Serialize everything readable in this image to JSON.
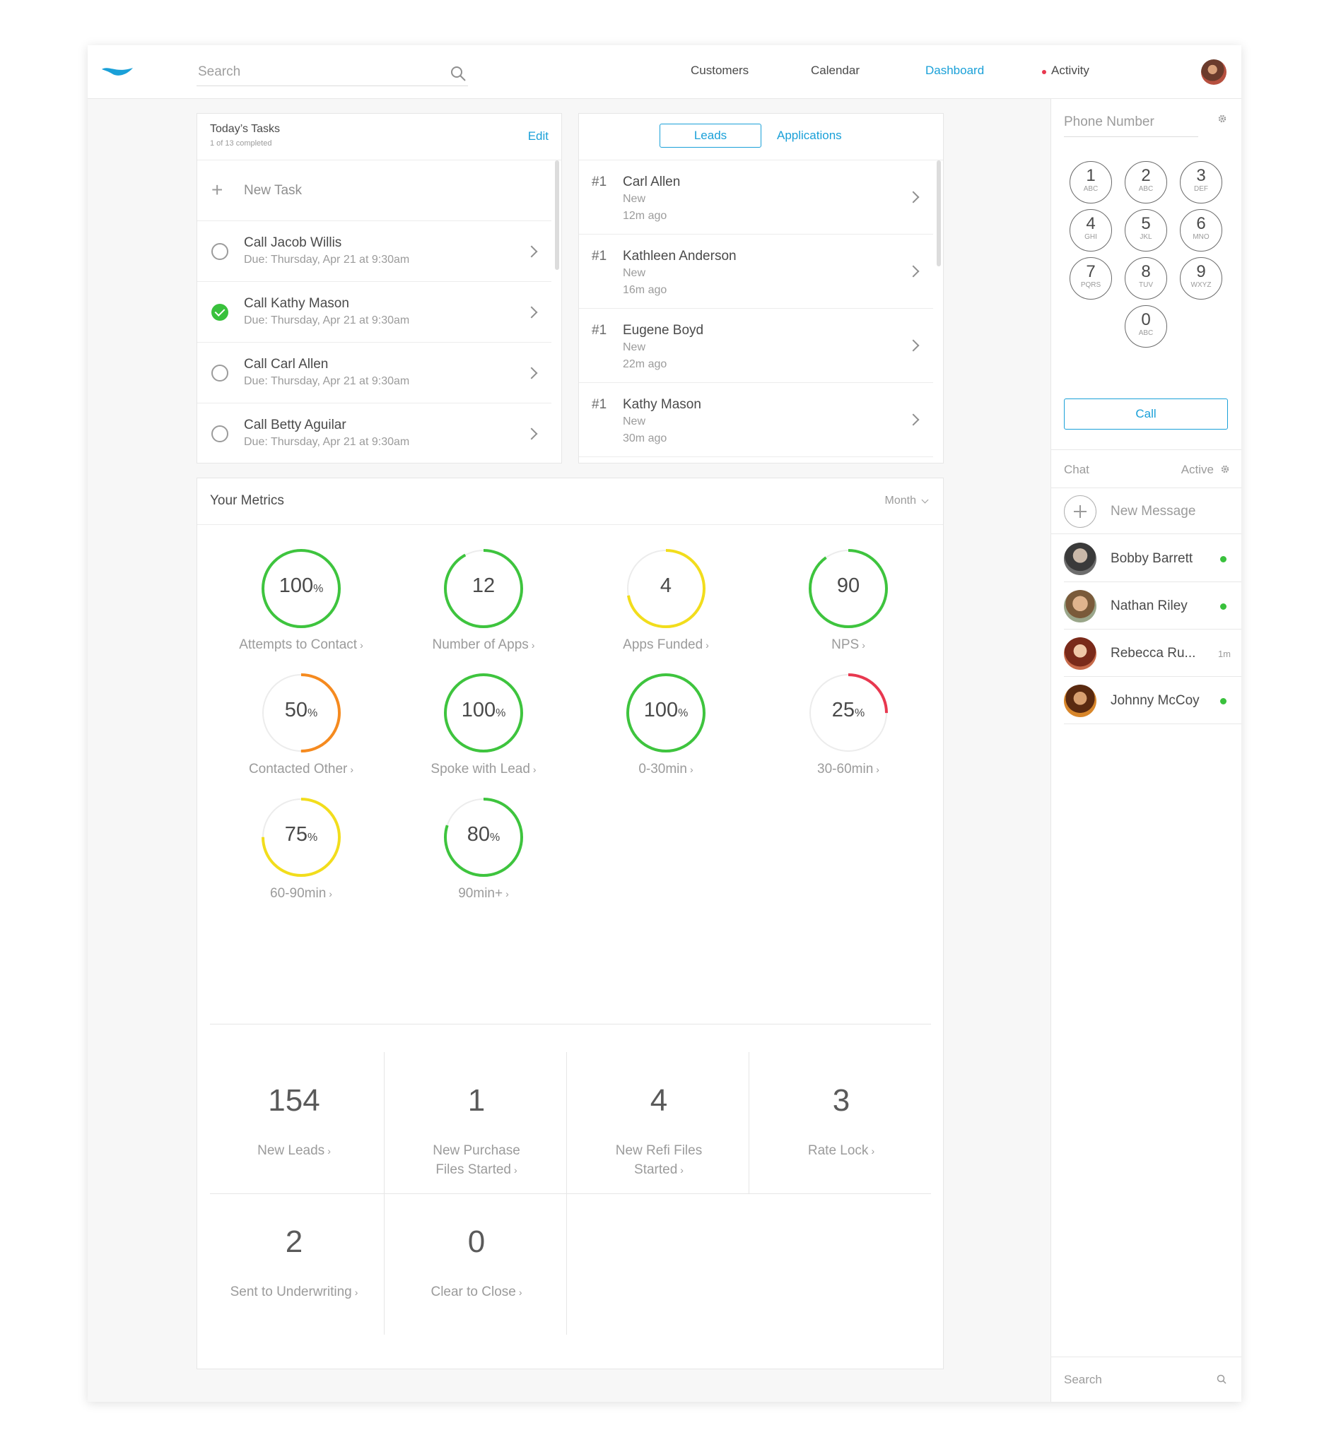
{
  "header": {
    "search_placeholder": "Search",
    "nav": [
      "Customers",
      "Calendar",
      "Dashboard",
      "Activity"
    ],
    "active_nav": "Dashboard",
    "accent_color": "#1aa0d8"
  },
  "tasks": {
    "title": "Today’s Tasks",
    "subtitle": "1 of 13 completed",
    "edit_label": "Edit",
    "new_task_label": "New Task",
    "items": [
      {
        "name": "Call Jacob Willis",
        "due": "Due: Thursday, Apr 21 at 9:30am",
        "done": false
      },
      {
        "name": "Call Kathy Mason",
        "due": "Due: Thursday, Apr 21 at 9:30am",
        "done": true
      },
      {
        "name": "Call Carl Allen",
        "due": "Due: Thursday, Apr 21 at 9:30am",
        "done": false
      },
      {
        "name": "Call Betty Aguilar",
        "due": "Due: Thursday, Apr 21 at 9:30am",
        "done": false
      }
    ]
  },
  "leads": {
    "tabs": [
      "Leads",
      "Applications"
    ],
    "active_tab": "Leads",
    "items": [
      {
        "rank": "#1",
        "name": "Carl Allen",
        "status": "New",
        "time": "12m ago"
      },
      {
        "rank": "#1",
        "name": "Kathleen Anderson",
        "status": "New",
        "time": "16m ago"
      },
      {
        "rank": "#1",
        "name": "Eugene Boyd",
        "status": "New",
        "time": "22m ago"
      },
      {
        "rank": "#1",
        "name": "Kathy Mason",
        "status": "New",
        "time": "30m ago"
      }
    ]
  },
  "metrics": {
    "title": "Your Metrics",
    "range": "Month",
    "gauges": [
      {
        "value": "100",
        "unit": "%",
        "label": "Attempts to Contact",
        "fill": 1.0,
        "color": "#3ec43e"
      },
      {
        "value": "12",
        "unit": "",
        "label": "Number of Apps",
        "fill": 0.92,
        "color": "#3ec43e"
      },
      {
        "value": "4",
        "unit": "",
        "label": "Apps Funded",
        "fill": 0.72,
        "color": "#f2dd1c"
      },
      {
        "value": "90",
        "unit": "",
        "label": "NPS",
        "fill": 0.9,
        "color": "#3ec43e"
      },
      {
        "value": "50",
        "unit": "%",
        "label": "Contacted Other",
        "fill": 0.5,
        "color": "#f58a1f"
      },
      {
        "value": "100",
        "unit": "%",
        "label": "Spoke with Lead",
        "fill": 1.0,
        "color": "#3ec43e"
      },
      {
        "value": "100",
        "unit": "%",
        "label": "0-30min",
        "fill": 1.0,
        "color": "#3ec43e"
      },
      {
        "value": "25",
        "unit": "%",
        "label": "30-60min",
        "fill": 0.25,
        "color": "#e8384f"
      },
      {
        "value": "75",
        "unit": "%",
        "label": "60-90min",
        "fill": 0.75,
        "color": "#f2dd1c"
      },
      {
        "value": "80",
        "unit": "%",
        "label": "90min+",
        "fill": 0.8,
        "color": "#3ec43e"
      }
    ],
    "stats": [
      {
        "value": "154",
        "label": "New Leads"
      },
      {
        "value": "1",
        "label": "New Purchase Files Started"
      },
      {
        "value": "4",
        "label": "New Refi Files Started"
      },
      {
        "value": "3",
        "label": "Rate Lock"
      },
      {
        "value": "2",
        "label": "Sent to Underwriting"
      },
      {
        "value": "0",
        "label": "Clear to Close"
      }
    ]
  },
  "dialer": {
    "placeholder": "Phone Number",
    "keys": [
      {
        "d": "1",
        "l": "ABC"
      },
      {
        "d": "2",
        "l": "ABC"
      },
      {
        "d": "3",
        "l": "DEF"
      },
      {
        "d": "4",
        "l": "GHI"
      },
      {
        "d": "5",
        "l": "JKL"
      },
      {
        "d": "6",
        "l": "MNO"
      },
      {
        "d": "7",
        "l": "PQRS"
      },
      {
        "d": "8",
        "l": "TUV"
      },
      {
        "d": "9",
        "l": "WXYZ"
      },
      {
        "d": "0",
        "l": "ABC"
      }
    ],
    "call_label": "Call"
  },
  "chat": {
    "title": "Chat",
    "status": "Active",
    "new_message": "New Message",
    "contacts": [
      {
        "name": "Bobby Barrett",
        "online": true,
        "time": ""
      },
      {
        "name": "Nathan Riley",
        "online": true,
        "time": ""
      },
      {
        "name": "Rebecca Ru...",
        "online": false,
        "time": "1m"
      },
      {
        "name": "Johnny McCoy",
        "online": true,
        "time": ""
      }
    ],
    "search_placeholder": "Search"
  }
}
